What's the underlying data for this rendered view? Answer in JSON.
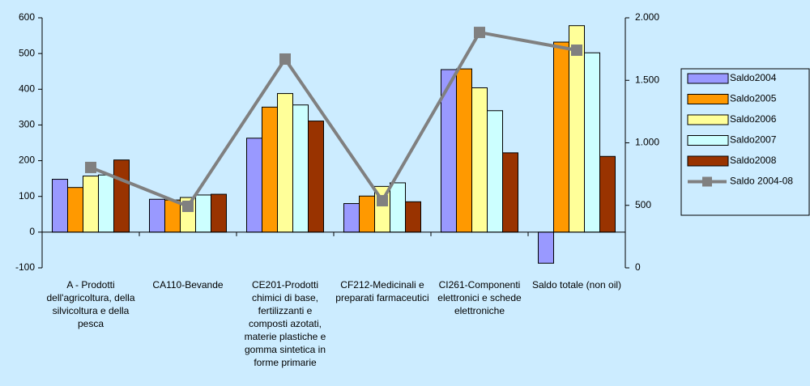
{
  "chart_data": {
    "type": "bar",
    "categories": [
      "A - Prodotti dell'agricoltura, della silvicoltura e della pesca",
      "CA110-Bevande",
      "CE201-Prodotti chimici di base, fertilizzanti e composti azotati, materie plastiche e gomma sintetica in forme primarie",
      "CF212-Medicinali e preparati farmaceutici",
      "CI261-Componenti elettronici e schede elettroniche",
      "Saldo totale (non oil)"
    ],
    "series": [
      {
        "name": "Saldo2004",
        "color": "#9999FF",
        "values": [
          148,
          92,
          263,
          80,
          455,
          -87
        ]
      },
      {
        "name": "Saldo2005",
        "color": "#FF9900",
        "values": [
          125,
          90,
          350,
          101,
          457,
          532
        ]
      },
      {
        "name": "Saldo2006",
        "color": "#FFFF99",
        "values": [
          157,
          97,
          388,
          128,
          404,
          578
        ]
      },
      {
        "name": "Saldo2007",
        "color": "#CCFFFF",
        "values": [
          160,
          104,
          356,
          138,
          340,
          502
        ]
      },
      {
        "name": "Saldo2008",
        "color": "#993300",
        "values": [
          202,
          106,
          311,
          85,
          222,
          212
        ]
      },
      {
        "name": "Saldo 2004-08",
        "color": "#808080",
        "type": "line",
        "axis": "y2",
        "values": [
          803,
          492,
          1670,
          537,
          1883,
          1741
        ]
      }
    ],
    "ylim": [
      -100,
      600
    ],
    "yticks": [
      -100,
      0,
      100,
      200,
      300,
      400,
      500,
      600
    ],
    "y2lim": [
      0,
      2000
    ],
    "y2ticks": [
      0,
      500,
      {
        "value": 1000,
        "label": "1.000"
      },
      {
        "value": 1500,
        "label": "1.500"
      },
      {
        "value": 2000,
        "label": "2.000"
      }
    ],
    "grid": false,
    "legend": "right"
  }
}
